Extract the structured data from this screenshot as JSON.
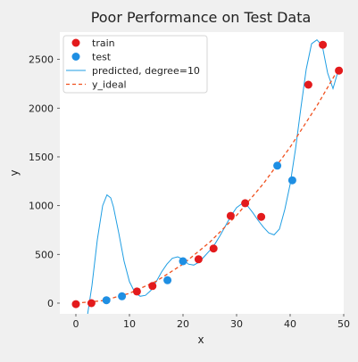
{
  "chart_data": {
    "type": "scatter",
    "title": "Poor Performance on Test Data",
    "xlabel": "x",
    "ylabel": "y",
    "xlim": [
      -3,
      50
    ],
    "ylim": [
      -110,
      2780
    ],
    "x_ticks": [
      0,
      10,
      20,
      30,
      40,
      50
    ],
    "y_ticks": [
      0,
      500,
      1000,
      1500,
      2000,
      2500
    ],
    "grid": false,
    "legend_position": "upper-left",
    "series": [
      {
        "name": "train",
        "kind": "scatter",
        "color": "#e31a1c",
        "x": [
          0,
          2.9,
          11.4,
          14.3,
          22.9,
          25.7,
          28.9,
          31.6,
          34.6,
          43.4,
          46.1,
          49.1
        ],
        "y": [
          -10,
          0,
          120,
          175,
          450,
          560,
          895,
          1025,
          885,
          2240,
          2650,
          2385
        ]
      },
      {
        "name": "test",
        "kind": "scatter",
        "color": "#1f8fe3",
        "x": [
          5.7,
          8.6,
          17.1,
          20.0,
          37.6,
          40.4
        ],
        "y": [
          30,
          70,
          235,
          430,
          1410,
          1260
        ]
      },
      {
        "name": "predicted, degree=10",
        "kind": "line",
        "color": "#1f9ee3",
        "x": [
          2.2,
          3.0,
          4.0,
          5.0,
          5.8,
          6.5,
          7.0,
          8.0,
          9.0,
          10.0,
          11.0,
          12.0,
          13.0,
          14.0,
          15.0,
          16.0,
          17.0,
          18.0,
          19.0,
          20.0,
          21.0,
          22.0,
          23.0,
          24.0,
          25.0,
          26.0,
          27.0,
          28.0,
          29.0,
          30.0,
          31.0,
          32.0,
          33.0,
          34.0,
          35.0,
          36.0,
          37.0,
          38.0,
          39.0,
          40.0,
          41.0,
          42.0,
          43.0,
          44.0,
          45.0,
          46.0,
          47.0,
          48.0,
          49.0
        ],
        "y": [
          -110,
          180,
          650,
          1000,
          1110,
          1080,
          990,
          720,
          430,
          220,
          110,
          70,
          80,
          130,
          220,
          320,
          400,
          460,
          475,
          450,
          400,
          390,
          420,
          480,
          540,
          610,
          700,
          800,
          900,
          980,
          1020,
          1000,
          930,
          850,
          780,
          720,
          700,
          760,
          960,
          1220,
          1580,
          2000,
          2400,
          2660,
          2700,
          2640,
          2360,
          2200,
          2390
        ]
      },
      {
        "name": "y_ideal",
        "kind": "dashed-line",
        "color": "#f0501e",
        "x": [
          0,
          5,
          10,
          15,
          20,
          25,
          30,
          35,
          40,
          45,
          49
        ],
        "y": [
          0,
          25,
          100,
          225,
          400,
          625,
          900,
          1225,
          1600,
          2025,
          2401
        ]
      }
    ]
  }
}
